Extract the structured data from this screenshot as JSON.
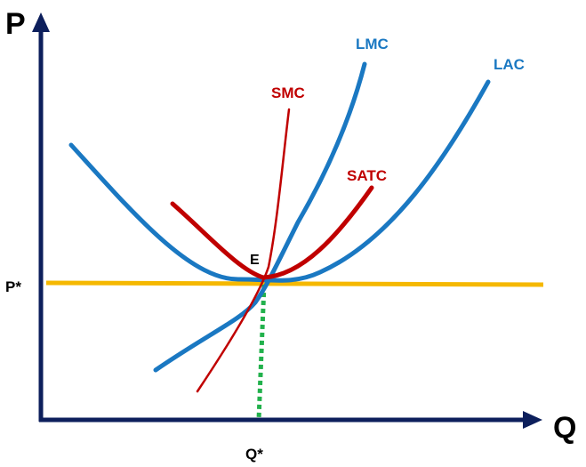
{
  "axes": {
    "y_label": "P",
    "x_label": "Q"
  },
  "levels": {
    "price_label": "P*",
    "quantity_label": "Q*"
  },
  "curves": {
    "lmc": "LMC",
    "lac": "LAC",
    "smc": "SMC",
    "satc": "SATC"
  },
  "equilibrium": {
    "label": "E"
  },
  "colors": {
    "axis": "#0d1f5c",
    "long_run": "#1a78c2",
    "short_run": "#c00000",
    "price_line": "#f5b800",
    "quantity_line": "#22b14c"
  }
}
